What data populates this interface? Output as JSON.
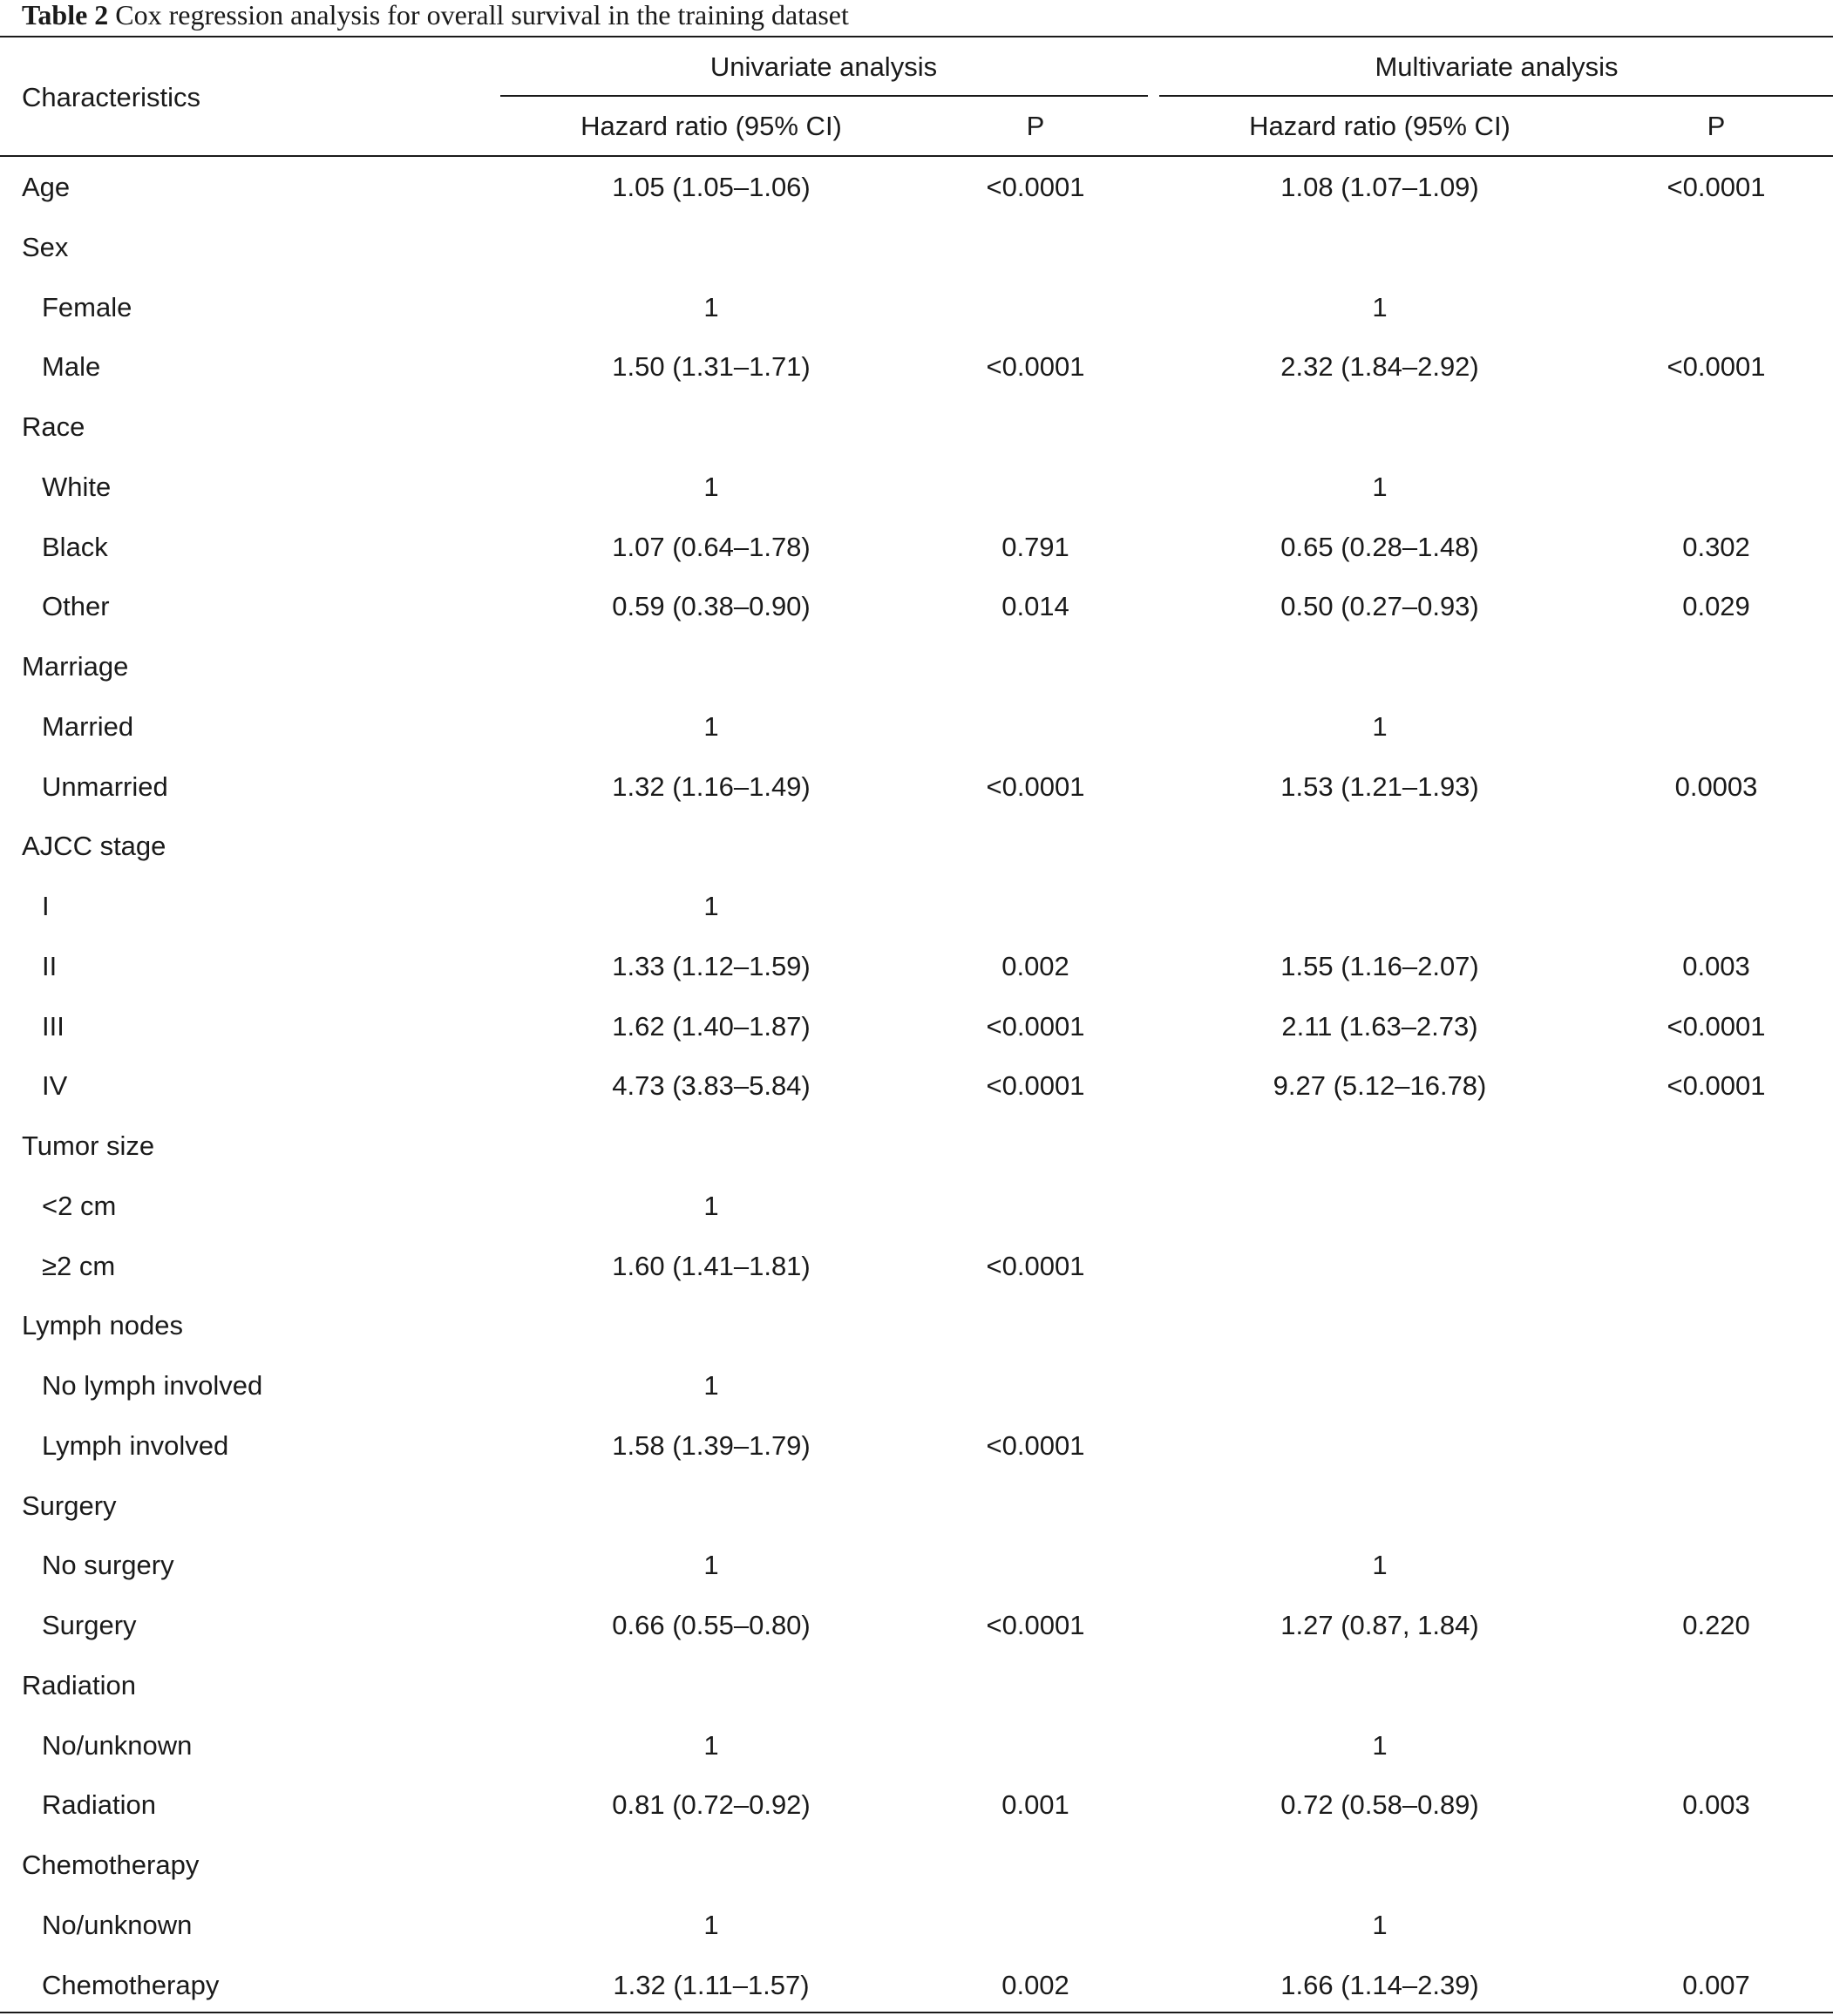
{
  "caption": {
    "label": "Table 2",
    "title": "Cox regression analysis for overall survival in the training dataset"
  },
  "header": {
    "characteristics": "Characteristics",
    "univariate": "Univariate analysis",
    "multivariate": "Multivariate analysis",
    "hr_label": "Hazard ratio (95% CI)",
    "p_label": "P"
  },
  "rows": [
    {
      "label": "Age",
      "indent": false,
      "uni_hr": "1.05 (1.05–1.06)",
      "uni_p": "<0.0001",
      "multi_hr": "1.08 (1.07–1.09)",
      "multi_p": "<0.0001"
    },
    {
      "label": "Sex",
      "indent": false,
      "uni_hr": "",
      "uni_p": "",
      "multi_hr": "",
      "multi_p": ""
    },
    {
      "label": "Female",
      "indent": true,
      "uni_hr": "1",
      "uni_p": "",
      "multi_hr": "1",
      "multi_p": ""
    },
    {
      "label": "Male",
      "indent": true,
      "uni_hr": "1.50 (1.31–1.71)",
      "uni_p": "<0.0001",
      "multi_hr": "2.32 (1.84–2.92)",
      "multi_p": "<0.0001"
    },
    {
      "label": "Race",
      "indent": false,
      "uni_hr": "",
      "uni_p": "",
      "multi_hr": "",
      "multi_p": ""
    },
    {
      "label": "White",
      "indent": true,
      "uni_hr": "1",
      "uni_p": "",
      "multi_hr": "1",
      "multi_p": ""
    },
    {
      "label": "Black",
      "indent": true,
      "uni_hr": "1.07 (0.64–1.78)",
      "uni_p": "0.791",
      "multi_hr": "0.65 (0.28–1.48)",
      "multi_p": "0.302"
    },
    {
      "label": "Other",
      "indent": true,
      "uni_hr": "0.59 (0.38–0.90)",
      "uni_p": "0.014",
      "multi_hr": "0.50 (0.27–0.93)",
      "multi_p": "0.029"
    },
    {
      "label": "Marriage",
      "indent": false,
      "uni_hr": "",
      "uni_p": "",
      "multi_hr": "",
      "multi_p": ""
    },
    {
      "label": "Married",
      "indent": true,
      "uni_hr": "1",
      "uni_p": "",
      "multi_hr": "1",
      "multi_p": ""
    },
    {
      "label": "Unmarried",
      "indent": true,
      "uni_hr": "1.32 (1.16–1.49)",
      "uni_p": "<0.0001",
      "multi_hr": "1.53 (1.21–1.93)",
      "multi_p": "0.0003"
    },
    {
      "label": "AJCC stage",
      "indent": false,
      "uni_hr": "",
      "uni_p": "",
      "multi_hr": "",
      "multi_p": ""
    },
    {
      "label": "I",
      "indent": true,
      "uni_hr": "1",
      "uni_p": "",
      "multi_hr": "",
      "multi_p": ""
    },
    {
      "label": "II",
      "indent": true,
      "uni_hr": "1.33 (1.12–1.59)",
      "uni_p": "0.002",
      "multi_hr": "1.55 (1.16–2.07)",
      "multi_p": "0.003"
    },
    {
      "label": "III",
      "indent": true,
      "uni_hr": "1.62 (1.40–1.87)",
      "uni_p": "<0.0001",
      "multi_hr": "2.11 (1.63–2.73)",
      "multi_p": "<0.0001"
    },
    {
      "label": "IV",
      "indent": true,
      "uni_hr": "4.73 (3.83–5.84)",
      "uni_p": "<0.0001",
      "multi_hr": "9.27 (5.12–16.78)",
      "multi_p": "<0.0001"
    },
    {
      "label": "Tumor size",
      "indent": false,
      "uni_hr": "",
      "uni_p": "",
      "multi_hr": "",
      "multi_p": ""
    },
    {
      "label": "<2 cm",
      "indent": true,
      "uni_hr": "1",
      "uni_p": "",
      "multi_hr": "",
      "multi_p": ""
    },
    {
      "label": "≥2 cm",
      "indent": true,
      "uni_hr": "1.60 (1.41–1.81)",
      "uni_p": "<0.0001",
      "multi_hr": "",
      "multi_p": ""
    },
    {
      "label": "Lymph nodes",
      "indent": false,
      "uni_hr": "",
      "uni_p": "",
      "multi_hr": "",
      "multi_p": ""
    },
    {
      "label": "No lymph involved",
      "indent": true,
      "uni_hr": "1",
      "uni_p": "",
      "multi_hr": "",
      "multi_p": ""
    },
    {
      "label": "Lymph involved",
      "indent": true,
      "uni_hr": "1.58 (1.39–1.79)",
      "uni_p": "<0.0001",
      "multi_hr": "",
      "multi_p": ""
    },
    {
      "label": "Surgery",
      "indent": false,
      "uni_hr": "",
      "uni_p": "",
      "multi_hr": "",
      "multi_p": ""
    },
    {
      "label": "No surgery",
      "indent": true,
      "uni_hr": "1",
      "uni_p": "",
      "multi_hr": "1",
      "multi_p": ""
    },
    {
      "label": "Surgery",
      "indent": true,
      "uni_hr": "0.66 (0.55–0.80)",
      "uni_p": "<0.0001",
      "multi_hr": "1.27 (0.87, 1.84)",
      "multi_p": "0.220"
    },
    {
      "label": "Radiation",
      "indent": false,
      "uni_hr": "",
      "uni_p": "",
      "multi_hr": "",
      "multi_p": ""
    },
    {
      "label": "No/unknown",
      "indent": true,
      "uni_hr": "1",
      "uni_p": "",
      "multi_hr": "1",
      "multi_p": ""
    },
    {
      "label": "Radiation",
      "indent": true,
      "uni_hr": "0.81 (0.72–0.92)",
      "uni_p": "0.001",
      "multi_hr": "0.72 (0.58–0.89)",
      "multi_p": "0.003"
    },
    {
      "label": "Chemotherapy",
      "indent": false,
      "uni_hr": "",
      "uni_p": "",
      "multi_hr": "",
      "multi_p": ""
    },
    {
      "label": "No/unknown",
      "indent": true,
      "uni_hr": "1",
      "uni_p": "",
      "multi_hr": "1",
      "multi_p": ""
    },
    {
      "label": "Chemotherapy",
      "indent": true,
      "uni_hr": "1.32 (1.11–1.57)",
      "uni_p": "0.002",
      "multi_hr": "1.66 (1.14–2.39)",
      "multi_p": "0.007"
    }
  ]
}
